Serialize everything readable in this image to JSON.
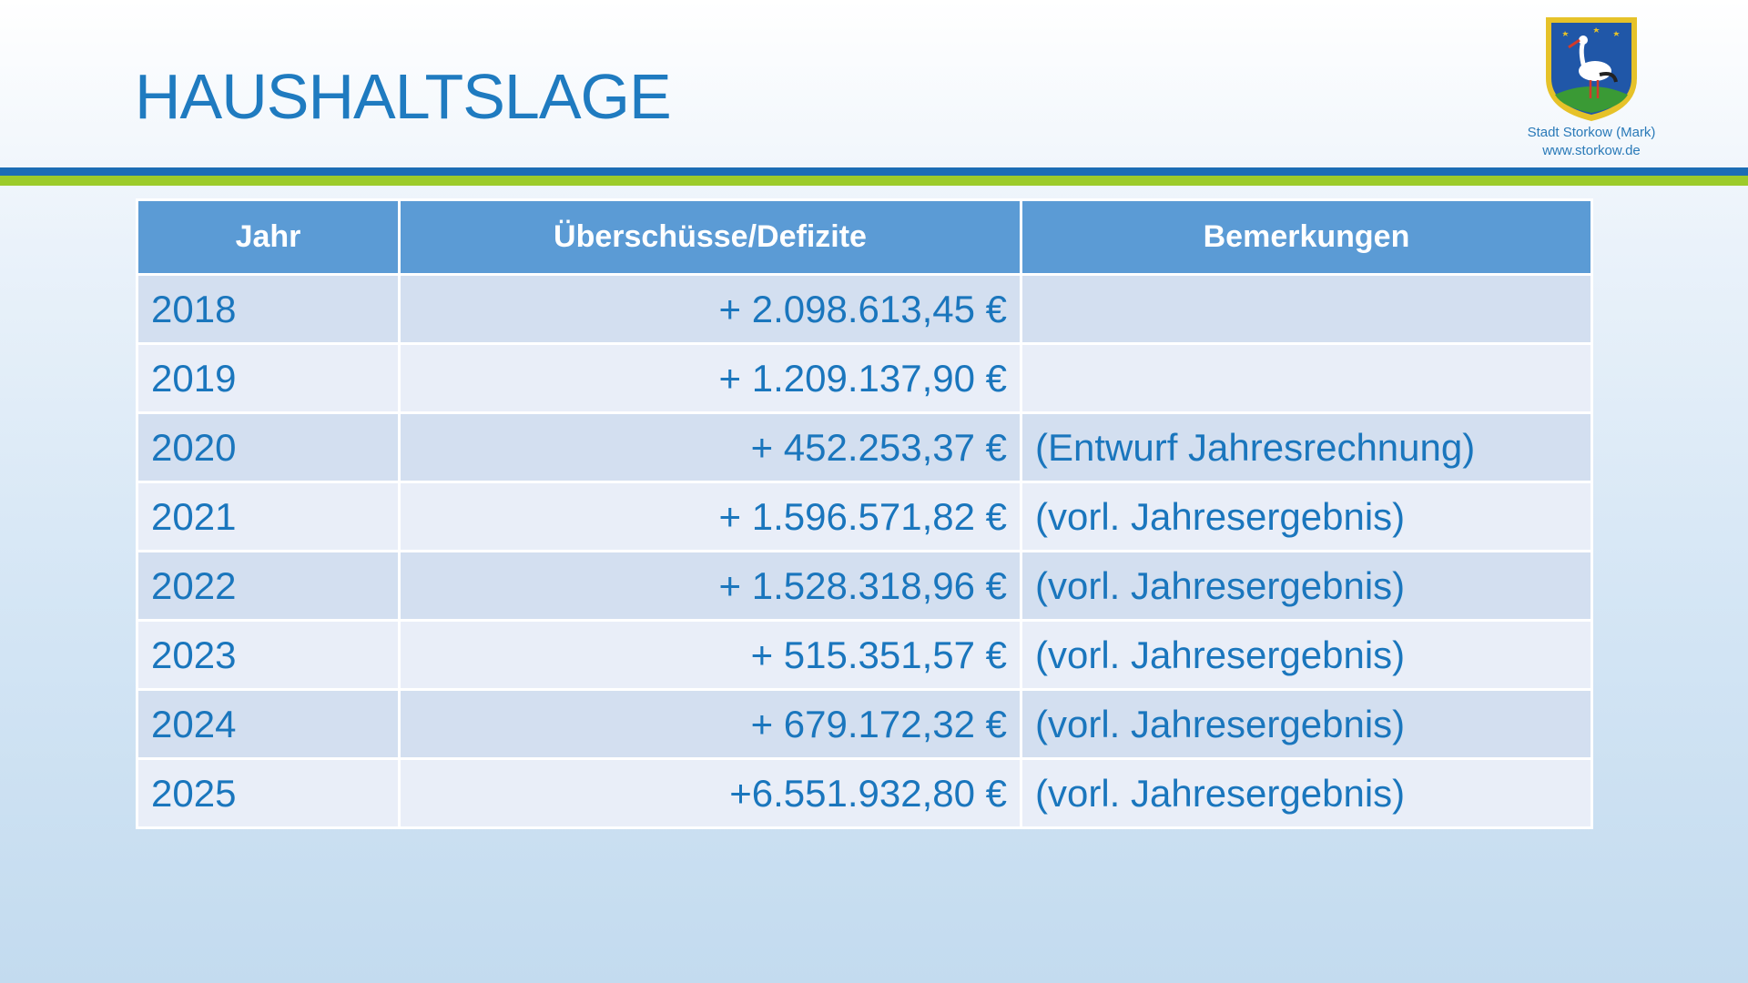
{
  "header": {
    "title": "HAUSHALTSLAGE"
  },
  "logo": {
    "lines": [
      "Stadt Storkow (Mark)",
      "www.storkow.de"
    ]
  },
  "table": {
    "columns": [
      "Jahr",
      "Überschüsse/Defizite",
      "Bemerkungen"
    ],
    "rows": [
      [
        "2018",
        "+ 2.098.613,45 €",
        null
      ],
      [
        "2019",
        "+ 1.209.137,90 €",
        null
      ],
      [
        "2020",
        "+ 452.253,37 €",
        "(Entwurf Jahresrechnung)"
      ],
      [
        "2021",
        "+ 1.596.571,82 €",
        "(vorl. Jahresergebnis)"
      ],
      [
        "2022",
        "+ 1.528.318,96 €",
        "(vorl. Jahresergebnis)"
      ],
      [
        "2023",
        "+ 515.351,57 €",
        "(vorl. Jahresergebnis)"
      ],
      [
        "2024",
        "+ 679.172,32 €",
        "(vorl. Jahresergebnis)"
      ],
      [
        "2025",
        "+6.551.932,80 €",
        "(vorl. Jahresergebnis)"
      ]
    ]
  }
}
